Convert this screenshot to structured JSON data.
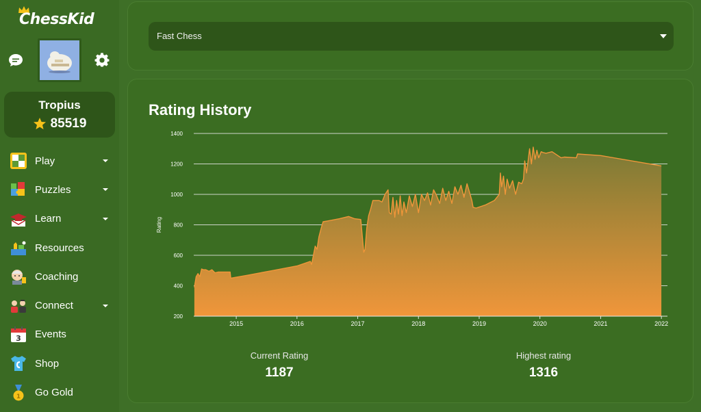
{
  "brand": {
    "name": "ChessKid"
  },
  "user": {
    "name": "Tropius",
    "points": "85519"
  },
  "nav": [
    {
      "label": "Play",
      "icon": "play-board-icon",
      "dropdown": true
    },
    {
      "label": "Puzzles",
      "icon": "puzzle-icon",
      "dropdown": true
    },
    {
      "label": "Learn",
      "icon": "learn-cap-icon",
      "dropdown": true
    },
    {
      "label": "Resources",
      "icon": "resources-icon",
      "dropdown": false
    },
    {
      "label": "Coaching",
      "icon": "coaching-icon",
      "dropdown": false
    },
    {
      "label": "Connect",
      "icon": "connect-icon",
      "dropdown": true
    },
    {
      "label": "Events",
      "icon": "calendar-icon",
      "dropdown": false
    },
    {
      "label": "Shop",
      "icon": "shirt-icon",
      "dropdown": false
    },
    {
      "label": "Go Gold",
      "icon": "gold-medal-icon",
      "dropdown": false
    }
  ],
  "select": {
    "value": "Fast Chess"
  },
  "chart": {
    "title": "Rating History"
  },
  "stats": {
    "current_label": "Current Rating",
    "current_value": "1187",
    "highest_label": "Highest rating",
    "highest_value": "1316"
  },
  "colors": {
    "line": "#f0963a",
    "grid": "#e8e8e8",
    "panel": "#3b6d22",
    "sidebar": "#3a6a23"
  },
  "chart_data": {
    "type": "area",
    "title": "",
    "xlabel": "",
    "ylabel": "Rating",
    "ylim": [
      200,
      1400
    ],
    "yticks": [
      200,
      400,
      600,
      800,
      1000,
      1200,
      1400
    ],
    "xlim": [
      2014.3,
      2022.1
    ],
    "xticks": [
      "2015",
      "2016",
      "2017",
      "2018",
      "2019",
      "2020",
      "2021",
      "2022"
    ],
    "grid": true,
    "legend": "none",
    "series": [
      {
        "name": "",
        "x": [
          2014.31,
          2014.34,
          2014.37,
          2014.4,
          2014.43,
          2014.46,
          2014.5,
          2014.55,
          2014.6,
          2014.65,
          2014.7,
          2014.8,
          2014.9,
          2014.91,
          2015.2,
          2015.6,
          2016.0,
          2016.22,
          2016.24,
          2016.27,
          2016.3,
          2016.33,
          2016.36,
          2016.4,
          2016.43,
          2016.5,
          2016.7,
          2016.85,
          2016.95,
          2017.05,
          2017.1,
          2017.12,
          2017.15,
          2017.18,
          2017.21,
          2017.25,
          2017.3,
          2017.35,
          2017.4,
          2017.45,
          2017.5,
          2017.52,
          2017.55,
          2017.58,
          2017.61,
          2017.64,
          2017.67,
          2017.7,
          2017.73,
          2017.76,
          2017.8,
          2017.85,
          2017.9,
          2017.95,
          2018.0,
          2018.05,
          2018.1,
          2018.15,
          2018.2,
          2018.25,
          2018.3,
          2018.35,
          2018.4,
          2018.45,
          2018.5,
          2018.55,
          2018.6,
          2018.65,
          2018.7,
          2018.75,
          2018.8,
          2018.85,
          2018.88,
          2018.9,
          2018.95,
          2019.1,
          2019.25,
          2019.33,
          2019.35,
          2019.37,
          2019.4,
          2019.43,
          2019.46,
          2019.5,
          2019.55,
          2019.6,
          2019.65,
          2019.7,
          2019.73,
          2019.75,
          2019.78,
          2019.8,
          2019.83,
          2019.86,
          2019.89,
          2019.92,
          2019.95,
          2019.98,
          2020.02,
          2020.05,
          2020.1,
          2020.2,
          2020.35,
          2020.4,
          2020.6,
          2020.62,
          2021.0,
          2022.0
        ],
        "values": [
          390,
          460,
          480,
          460,
          510,
          505,
          505,
          495,
          505,
          485,
          490,
          490,
          490,
          450,
          470,
          500,
          530,
          560,
          540,
          600,
          660,
          640,
          720,
          780,
          820,
          825,
          840,
          855,
          840,
          835,
          620,
          640,
          780,
          860,
          900,
          960,
          960,
          960,
          950,
          1000,
          1030,
          880,
          870,
          980,
          850,
          960,
          870,
          990,
          860,
          950,
          880,
          990,
          920,
          1000,
          880,
          1000,
          960,
          1010,
          930,
          1030,
          990,
          940,
          1040,
          960,
          1020,
          940,
          1050,
          1000,
          1060,
          980,
          1070,
          1000,
          960,
          915,
          910,
          930,
          960,
          1000,
          1140,
          1050,
          1120,
          1000,
          1100,
          1040,
          1090,
          1000,
          1080,
          1070,
          1100,
          1220,
          1140,
          1200,
          1300,
          1200,
          1310,
          1230,
          1290,
          1240,
          1280,
          1275,
          1270,
          1280,
          1240,
          1245,
          1240,
          1265,
          1255,
          1187
        ]
      }
    ]
  }
}
